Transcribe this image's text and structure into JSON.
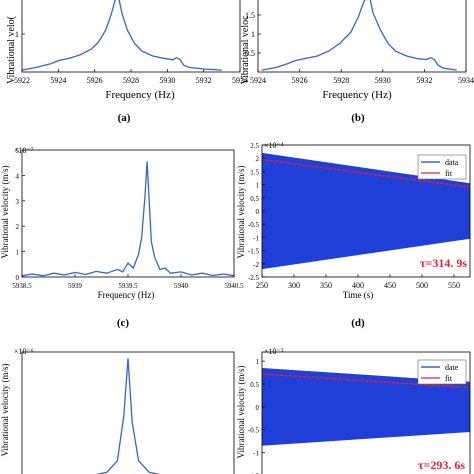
{
  "panels": [
    {
      "id": "a",
      "caption": "(a)",
      "xlabel": "Frequency (Hz)",
      "ylabel": "Vibrational velo(",
      "xticks": [
        "5922",
        "5924",
        "5926",
        "5928",
        "5930",
        "5932",
        "5934"
      ],
      "yticks": [
        "1"
      ],
      "chart_data": {
        "type": "line",
        "xlim": [
          5922,
          5934
        ],
        "ylim": [
          0,
          2.0
        ],
        "series": [
          {
            "color": "#3a63c8",
            "x": [
              5922.0,
              5922.8,
              5923.6,
              5924.0,
              5924.6,
              5925.2,
              5925.8,
              5926.2,
              5926.6,
              5926.9,
              5927.1,
              5927.2,
              5927.3,
              5927.5,
              5927.8,
              5928.2,
              5928.6,
              5929.2,
              5929.8,
              5930.3,
              5930.5,
              5930.7,
              5930.9,
              5931.2,
              5932.0,
              5933.0
            ],
            "y": [
              0.05,
              0.12,
              0.22,
              0.3,
              0.36,
              0.45,
              0.6,
              0.78,
              1.1,
              1.5,
              1.85,
              2.0,
              2.0,
              1.55,
              1.1,
              0.75,
              0.55,
              0.42,
              0.36,
              0.32,
              0.38,
              0.33,
              0.18,
              0.12,
              0.08,
              0.05
            ]
          }
        ]
      }
    },
    {
      "id": "b",
      "caption": "(b)",
      "xlabel": "Frequency (Hz)",
      "ylabel": "Vibrational veloc",
      "xticks": [
        "5924",
        "5926",
        "5928",
        "5930",
        "5932",
        "5934"
      ],
      "yticks": [
        "1.5",
        "1",
        "0.5"
      ],
      "chart_data": {
        "type": "line",
        "xlim": [
          5922.8,
          5934
        ],
        "ylim": [
          0,
          2.0
        ],
        "series": [
          {
            "color": "#3a63c8",
            "x": [
              5923.0,
              5923.8,
              5924.4,
              5924.8,
              5925.4,
              5926.0,
              5926.6,
              5927.2,
              5927.8,
              5928.2,
              5928.5,
              5928.7,
              5928.8,
              5929.0,
              5929.4,
              5929.8,
              5930.2,
              5930.8,
              5931.4,
              5931.9,
              5932.1,
              5932.3,
              5932.5,
              5932.8,
              5933.5
            ],
            "y": [
              0.05,
              0.12,
              0.22,
              0.3,
              0.36,
              0.42,
              0.55,
              0.75,
              1.05,
              1.45,
              1.85,
              2.0,
              2.0,
              1.55,
              1.1,
              0.75,
              0.55,
              0.42,
              0.35,
              0.33,
              0.38,
              0.32,
              0.18,
              0.1,
              0.05
            ]
          }
        ]
      }
    },
    {
      "id": "c",
      "caption": "(c)",
      "xlabel": "Frequency (Hz)",
      "ylabel": "Vibrational velocity (m/s)",
      "exponent": "×10⁻⁷",
      "xticks": [
        "5938.5",
        "5939",
        "5939.5",
        "5940",
        "5940.5"
      ],
      "yticks": [
        "5",
        "4",
        "3",
        "2",
        "1",
        "0"
      ],
      "chart_data": {
        "type": "line",
        "xlim": [
          5938.5,
          5940.5
        ],
        "ylim": [
          0,
          5
        ],
        "series": [
          {
            "color": "#3a63c8",
            "x": [
              5938.5,
              5938.6,
              5938.7,
              5938.8,
              5938.9,
              5939.0,
              5939.1,
              5939.2,
              5939.3,
              5939.4,
              5939.45,
              5939.5,
              5939.55,
              5939.6,
              5939.63,
              5939.66,
              5939.68,
              5939.7,
              5939.72,
              5939.75,
              5939.78,
              5939.8,
              5939.85,
              5939.9,
              5940.0,
              5940.1,
              5940.2,
              5940.3,
              5940.4,
              5940.5
            ],
            "y": [
              0.05,
              0.12,
              0.05,
              0.15,
              0.08,
              0.18,
              0.1,
              0.22,
              0.15,
              0.3,
              0.2,
              0.55,
              0.35,
              0.9,
              1.6,
              3.2,
              4.55,
              3.0,
              1.4,
              0.8,
              0.5,
              0.3,
              0.35,
              0.15,
              0.2,
              0.08,
              0.15,
              0.06,
              0.12,
              0.05
            ]
          }
        ]
      }
    },
    {
      "id": "d",
      "caption": "(d)",
      "xlabel": "Time (s)",
      "ylabel": "Vibrational velocity (m/s)",
      "exponent": "×10⁻⁴",
      "xticks": [
        "250",
        "300",
        "350",
        "400",
        "450",
        "500",
        "550"
      ],
      "yticks": [
        "2.5",
        "2",
        "1.5",
        "1",
        "0.5",
        "0",
        "-0.5",
        "-1",
        "-1.5",
        "-2",
        "-2.5"
      ],
      "legend": [
        "data",
        "fit"
      ],
      "annotation": "τ=314. 9s",
      "chart_data": {
        "type": "area",
        "xlim": [
          250,
          575
        ],
        "ylim": [
          -2.5,
          2.5
        ],
        "envelope": {
          "x": [
            250,
            575
          ],
          "upper": [
            2.2,
            1.05
          ],
          "lower": [
            -2.2,
            -1.05
          ]
        },
        "series": [
          {
            "name": "data",
            "color": "#1f3fd8",
            "x": [
              250,
              575
            ],
            "y_upper": [
              2.2,
              1.05
            ],
            "y_lower": [
              -2.2,
              -1.05
            ]
          },
          {
            "name": "fit",
            "color": "#e0203a",
            "x": [
              250,
              575
            ],
            "y": [
              1.95,
              0.9
            ]
          }
        ]
      }
    },
    {
      "id": "e",
      "caption": "",
      "xlabel": "",
      "ylabel": "Vibrational velocity (m/s)",
      "exponent": "×10⁻⁶",
      "xticks": [],
      "yticks": [],
      "chart_data": {
        "type": "line",
        "xlim": [
          0,
          1
        ],
        "ylim": [
          0,
          2.0
        ],
        "series": [
          {
            "color": "#3a63c8",
            "x": [
              0.0,
              0.3,
              0.4,
              0.45,
              0.48,
              0.5,
              0.52,
              0.55,
              0.6,
              0.7,
              1.0
            ],
            "y": [
              0.0,
              0.05,
              0.12,
              0.3,
              1.0,
              1.9,
              0.9,
              0.3,
              0.12,
              0.05,
              0.0
            ]
          }
        ]
      }
    },
    {
      "id": "f",
      "caption": "",
      "xlabel": "",
      "ylabel": "Vibrational velocity (m/s)",
      "exponent": "×10⁻⁵",
      "xticks": [],
      "yticks": [
        "1",
        "0.5",
        "0",
        "-0.5",
        "-1",
        "-1.5"
      ],
      "legend": [
        "date",
        "fit"
      ],
      "annotation": "τ=293. 6s",
      "chart_data": {
        "type": "area",
        "ylim": [
          -1.6,
          1.2
        ],
        "series": [
          {
            "name": "date",
            "color": "#1f3fd8"
          },
          {
            "name": "fit",
            "color": "#e0203a"
          }
        ]
      }
    }
  ]
}
